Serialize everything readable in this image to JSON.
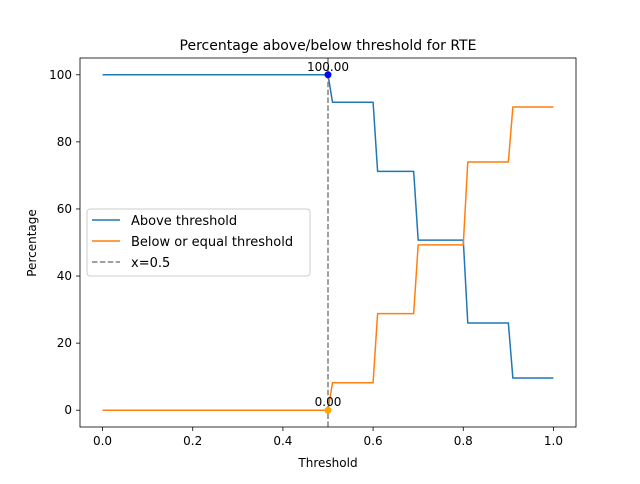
{
  "chart_data": {
    "type": "line",
    "title": "Percentage above/below threshold for RTE",
    "xlabel": "Threshold",
    "ylabel": "Percentage",
    "xlim": [
      -0.05,
      1.05
    ],
    "ylim": [
      -5,
      105
    ],
    "xticks": [
      0.0,
      0.2,
      0.4,
      0.6,
      0.8,
      1.0
    ],
    "xtick_labels": [
      "0.0",
      "0.2",
      "0.4",
      "0.6",
      "0.8",
      "1.0"
    ],
    "yticks": [
      0,
      20,
      40,
      60,
      80,
      100
    ],
    "ytick_labels": [
      "0",
      "20",
      "40",
      "60",
      "80",
      "100"
    ],
    "grid": false,
    "legend_position": "center-left",
    "series": [
      {
        "name": "Above threshold",
        "color": "#1f77b4",
        "style": "solid",
        "x": [
          0.0,
          0.49,
          0.5,
          0.51,
          0.6,
          0.61,
          0.69,
          0.7,
          0.8,
          0.81,
          0.9,
          0.91,
          1.0
        ],
        "y": [
          100,
          100,
          100,
          91.8,
          91.8,
          71.2,
          71.2,
          50.7,
          50.7,
          26.0,
          26.0,
          9.6,
          9.6
        ]
      },
      {
        "name": "Below or equal threshold",
        "color": "#ff7f0e",
        "style": "solid",
        "x": [
          0.0,
          0.49,
          0.5,
          0.51,
          0.6,
          0.61,
          0.69,
          0.7,
          0.8,
          0.81,
          0.9,
          0.91,
          1.0
        ],
        "y": [
          0,
          0,
          0,
          8.2,
          8.2,
          28.8,
          28.8,
          49.3,
          49.3,
          74.0,
          74.0,
          90.4,
          90.4
        ]
      }
    ],
    "vline": {
      "name": "x=0.5",
      "x": 0.5,
      "color": "#808080",
      "style": "dashed"
    },
    "annotations": [
      {
        "label": "100.00",
        "x": 0.5,
        "y": 100,
        "marker_color": "#0000ff"
      },
      {
        "label": "0.00",
        "x": 0.5,
        "y": 0,
        "marker_color": "#ffa500"
      }
    ]
  }
}
